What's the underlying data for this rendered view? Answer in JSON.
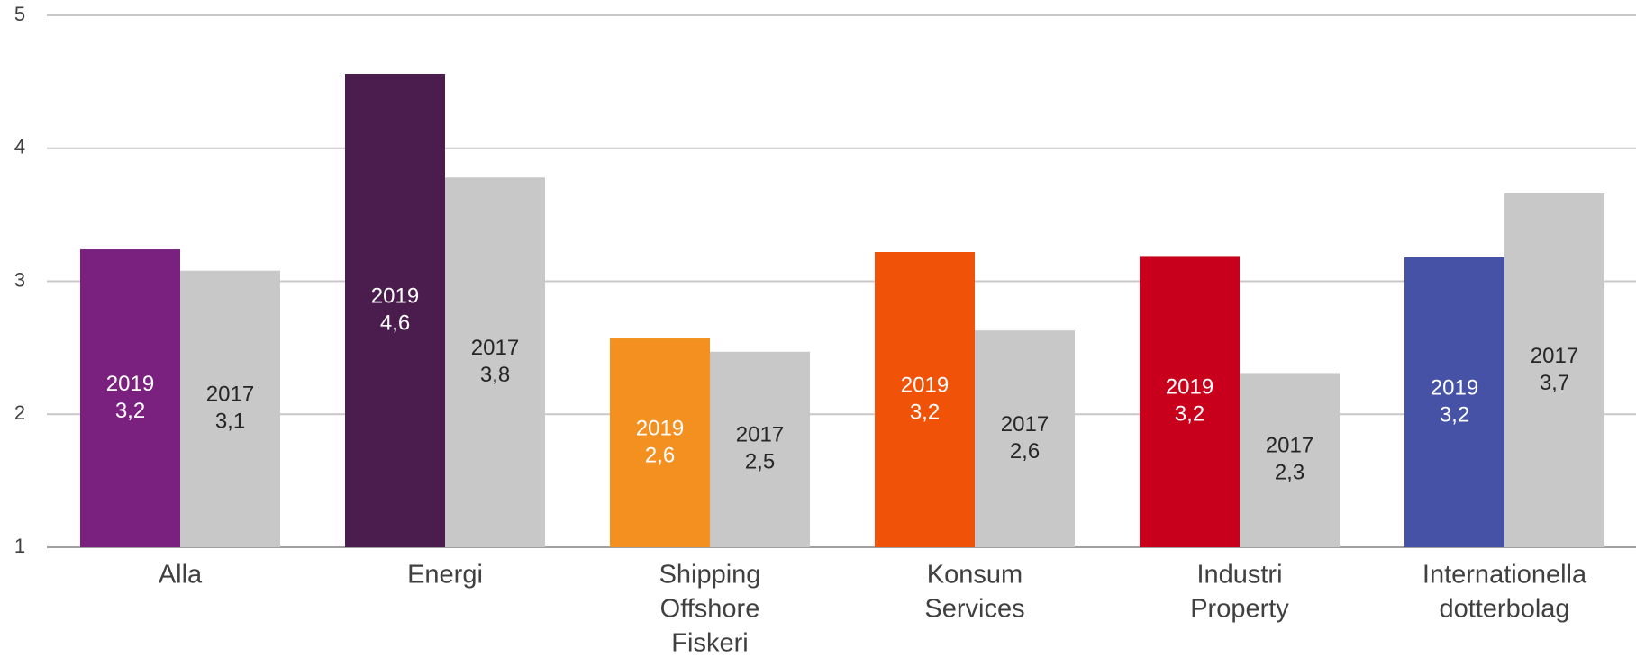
{
  "chart_data": {
    "type": "bar",
    "categories": [
      [
        "Alla"
      ],
      [
        "Energi"
      ],
      [
        "Shipping",
        "Offshore",
        "Fiskeri"
      ],
      [
        "Konsum",
        "Services"
      ],
      [
        "Industri",
        "Property"
      ],
      [
        "Internationella",
        "dotterbolag"
      ]
    ],
    "series": [
      {
        "name": "2019",
        "colors": [
          "#7a2180",
          "#4a1d4e",
          "#f39020",
          "#f05208",
          "#c8001c",
          "#4652a6"
        ],
        "values": [
          3.24,
          4.56,
          2.57,
          3.22,
          3.19,
          3.18
        ],
        "value_labels": [
          "3,2",
          "4,6",
          "2,6",
          "3,2",
          "3,2",
          "3,2"
        ]
      },
      {
        "name": "2017",
        "color": "#c8c8c8",
        "values": [
          3.08,
          3.78,
          2.47,
          2.63,
          2.31,
          3.66
        ],
        "value_labels": [
          "3,1",
          "3,8",
          "2,5",
          "2,6",
          "2,3",
          "3,7"
        ]
      }
    ],
    "ylim": [
      1,
      5
    ],
    "yticks": [
      1,
      2,
      3,
      4,
      5
    ],
    "grid": true
  }
}
